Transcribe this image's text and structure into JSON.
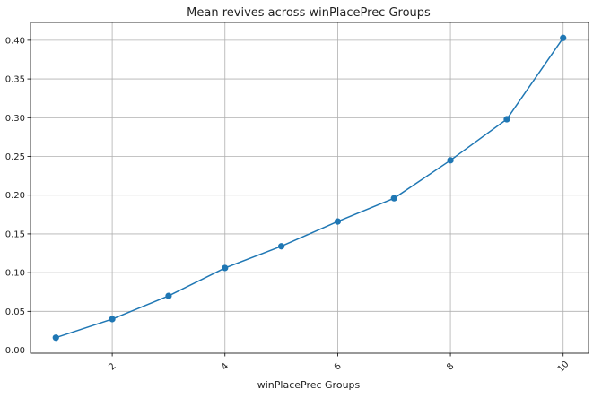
{
  "chart_data": {
    "type": "line",
    "title": "Mean revives across winPlacePrec Groups",
    "xlabel": "winPlacePrec Groups",
    "ylabel": "",
    "x": [
      1,
      2,
      3,
      4,
      5,
      6,
      7,
      8,
      9,
      10
    ],
    "series": [
      {
        "values": [
          0.016,
          0.04,
          0.07,
          0.106,
          0.134,
          0.166,
          0.196,
          0.245,
          0.298,
          0.403
        ],
        "color": "#1f77b4"
      }
    ],
    "xlim": [
      0.55,
      10.45
    ],
    "ylim": [
      -0.004,
      0.423
    ],
    "xticks": [
      2,
      4,
      6,
      8,
      10
    ],
    "xtick_labels": [
      "2",
      "4",
      "6",
      "8",
      "10"
    ],
    "xtick_rotation": -45,
    "yticks": [
      0.0,
      0.05,
      0.1,
      0.15,
      0.2,
      0.25,
      0.3,
      0.35,
      0.4
    ],
    "ytick_labels": [
      "0.00",
      "0.05",
      "0.10",
      "0.15",
      "0.20",
      "0.25",
      "0.30",
      "0.35",
      "0.40"
    ],
    "grid": true,
    "markers": "circle"
  }
}
